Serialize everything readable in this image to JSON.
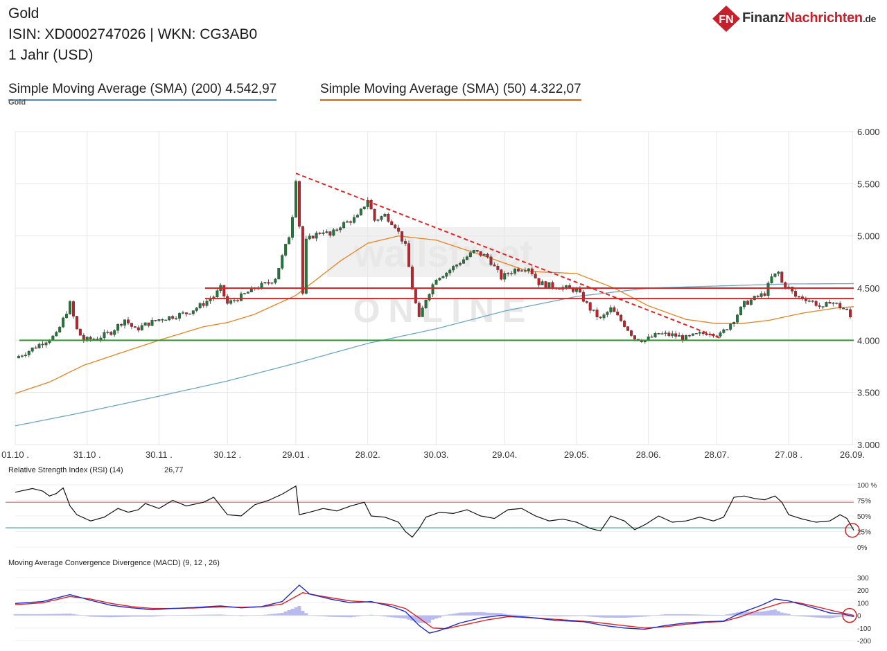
{
  "header": {
    "title": "Gold",
    "isin_line": "ISIN: XD0002747026  | WKN: CG3AB0",
    "period": "1 Jahr (USD)"
  },
  "logo": {
    "badge_text": "FN",
    "brand_part1": "Finanz",
    "brand_part2": "Nachrichten",
    "brand_part3": ".de"
  },
  "legend": {
    "sma200_label": "Simple Moving Average (SMA) (200) 4.542,97",
    "sma50_label": "Simple Moving Average (SMA) (50) 4.322,07",
    "sma200_color": "#6aa6c8",
    "sma50_color": "#e8821e"
  },
  "instrument_label": "Gold",
  "watermark": {
    "line1": "wallstreet",
    "line2": "ONLINE"
  },
  "chart_data": [
    {
      "type": "candlestick",
      "title": "Gold",
      "ylim": [
        3000,
        6000
      ],
      "yticks": [
        "6.000",
        "5.500",
        "5.000",
        "4.500",
        "4.000",
        "3.500",
        "3.000"
      ],
      "ytick_values": [
        6000,
        5500,
        5000,
        4500,
        4000,
        3500,
        3000
      ],
      "xticks": [
        "01.10 .",
        "31.10 .",
        "30.11 .",
        "30.12 .",
        "29.01 .",
        "28.02.",
        "30.03.",
        "29.04.",
        "29.05.",
        "28.06.",
        "28.07.",
        "27.08 .",
        "26.09."
      ],
      "n_days": 245,
      "xtick_days": [
        0,
        21,
        42,
        62,
        82,
        103,
        123,
        143,
        164,
        185,
        205,
        226,
        247
      ],
      "price_keypoints": [
        [
          0,
          3830
        ],
        [
          4,
          3900
        ],
        [
          8,
          3980
        ],
        [
          12,
          4050
        ],
        [
          14,
          4200
        ],
        [
          16,
          4350
        ],
        [
          18,
          4100
        ],
        [
          20,
          4000
        ],
        [
          24,
          4020
        ],
        [
          28,
          4080
        ],
        [
          32,
          4200
        ],
        [
          35,
          4100
        ],
        [
          38,
          4150
        ],
        [
          42,
          4200
        ],
        [
          46,
          4230
        ],
        [
          50,
          4260
        ],
        [
          54,
          4330
        ],
        [
          58,
          4420
        ],
        [
          60,
          4500
        ],
        [
          62,
          4350
        ],
        [
          66,
          4420
        ],
        [
          70,
          4500
        ],
        [
          74,
          4550
        ],
        [
          76,
          4600
        ],
        [
          78,
          4800
        ],
        [
          80,
          5000
        ],
        [
          81,
          5200
        ],
        [
          82,
          5550
        ],
        [
          83,
          5100
        ],
        [
          84,
          4450
        ],
        [
          85,
          4950
        ],
        [
          87,
          5000
        ],
        [
          90,
          5050
        ],
        [
          92,
          5000
        ],
        [
          95,
          5100
        ],
        [
          100,
          5180
        ],
        [
          103,
          5350
        ],
        [
          105,
          5150
        ],
        [
          108,
          5200
        ],
        [
          111,
          5100
        ],
        [
          114,
          4900
        ],
        [
          116,
          4500
        ],
        [
          118,
          4200
        ],
        [
          120,
          4400
        ],
        [
          123,
          4600
        ],
        [
          126,
          4650
        ],
        [
          130,
          4750
        ],
        [
          134,
          4850
        ],
        [
          138,
          4800
        ],
        [
          142,
          4600
        ],
        [
          146,
          4680
        ],
        [
          150,
          4700
        ],
        [
          153,
          4550
        ],
        [
          157,
          4520
        ],
        [
          161,
          4500
        ],
        [
          164,
          4480
        ],
        [
          168,
          4300
        ],
        [
          171,
          4200
        ],
        [
          174,
          4300
        ],
        [
          178,
          4150
        ],
        [
          181,
          4020
        ],
        [
          184,
          4000
        ],
        [
          188,
          4060
        ],
        [
          192,
          4050
        ],
        [
          196,
          4020
        ],
        [
          199,
          4050
        ],
        [
          203,
          4080
        ],
        [
          206,
          4050
        ],
        [
          210,
          4200
        ],
        [
          213,
          4350
        ],
        [
          216,
          4400
        ],
        [
          219,
          4450
        ],
        [
          221,
          4600
        ],
        [
          223,
          4650
        ],
        [
          224,
          4550
        ],
        [
          226,
          4500
        ],
        [
          228,
          4420
        ],
        [
          231,
          4400
        ],
        [
          234,
          4350
        ],
        [
          236,
          4300
        ],
        [
          238,
          4380
        ],
        [
          241,
          4320
        ],
        [
          243,
          4280
        ],
        [
          245,
          4160
        ]
      ],
      "sma200_keypoints": [
        [
          0,
          3180
        ],
        [
          20,
          3310
        ],
        [
          40,
          3450
        ],
        [
          62,
          3610
        ],
        [
          82,
          3780
        ],
        [
          103,
          3970
        ],
        [
          123,
          4110
        ],
        [
          143,
          4280
        ],
        [
          164,
          4420
        ],
        [
          185,
          4500
        ],
        [
          205,
          4520
        ],
        [
          226,
          4540
        ],
        [
          245,
          4543
        ]
      ],
      "sma50_keypoints": [
        [
          0,
          3490
        ],
        [
          10,
          3600
        ],
        [
          20,
          3760
        ],
        [
          30,
          3870
        ],
        [
          42,
          4000
        ],
        [
          55,
          4130
        ],
        [
          62,
          4170
        ],
        [
          70,
          4250
        ],
        [
          82,
          4430
        ],
        [
          95,
          4760
        ],
        [
          103,
          4930
        ],
        [
          112,
          5000
        ],
        [
          123,
          4960
        ],
        [
          135,
          4830
        ],
        [
          150,
          4660
        ],
        [
          164,
          4640
        ],
        [
          175,
          4500
        ],
        [
          185,
          4330
        ],
        [
          196,
          4200
        ],
        [
          205,
          4160
        ],
        [
          212,
          4160
        ],
        [
          220,
          4190
        ],
        [
          230,
          4260
        ],
        [
          240,
          4310
        ],
        [
          245,
          4322
        ]
      ],
      "horizontal_lines": [
        {
          "value": 4500,
          "color": "#e32222"
        },
        {
          "value": 4400,
          "color": "#e32222"
        },
        {
          "value": 4000,
          "color": "#2a9a2a"
        }
      ],
      "trendline": {
        "from": [
          82,
          5600
        ],
        "to": [
          206,
          4020
        ],
        "color": "#e32222",
        "style": "dashed"
      }
    },
    {
      "type": "line",
      "title": "Relative Strength Index (RSI) (14)",
      "value_label": "26,77",
      "ylim": [
        0,
        100
      ],
      "yticks": [
        "100 %",
        "75%",
        "50%",
        "25%",
        "0%"
      ],
      "ytick_values": [
        100,
        75,
        50,
        25,
        0
      ],
      "threshold_lines": [
        {
          "value": 72,
          "color": "#e08a8a"
        },
        {
          "value": 31,
          "color": "#6fb0a0"
        }
      ],
      "keypoints": [
        [
          0,
          88
        ],
        [
          5,
          94
        ],
        [
          8,
          90
        ],
        [
          10,
          82
        ],
        [
          12,
          86
        ],
        [
          14,
          95
        ],
        [
          16,
          66
        ],
        [
          18,
          52
        ],
        [
          22,
          42
        ],
        [
          26,
          48
        ],
        [
          30,
          62
        ],
        [
          33,
          56
        ],
        [
          36,
          60
        ],
        [
          38,
          70
        ],
        [
          42,
          62
        ],
        [
          46,
          75
        ],
        [
          50,
          66
        ],
        [
          55,
          72
        ],
        [
          58,
          80
        ],
        [
          62,
          52
        ],
        [
          66,
          50
        ],
        [
          70,
          68
        ],
        [
          74,
          75
        ],
        [
          78,
          85
        ],
        [
          82,
          98
        ],
        [
          83,
          52
        ],
        [
          86,
          56
        ],
        [
          90,
          62
        ],
        [
          94,
          58
        ],
        [
          98,
          66
        ],
        [
          102,
          72
        ],
        [
          104,
          50
        ],
        [
          108,
          48
        ],
        [
          112,
          40
        ],
        [
          114,
          25
        ],
        [
          116,
          16
        ],
        [
          118,
          30
        ],
        [
          120,
          48
        ],
        [
          124,
          56
        ],
        [
          128,
          54
        ],
        [
          132,
          60
        ],
        [
          136,
          50
        ],
        [
          140,
          46
        ],
        [
          144,
          60
        ],
        [
          148,
          62
        ],
        [
          152,
          50
        ],
        [
          156,
          42
        ],
        [
          160,
          45
        ],
        [
          164,
          40
        ],
        [
          168,
          30
        ],
        [
          171,
          26
        ],
        [
          174,
          50
        ],
        [
          178,
          42
        ],
        [
          181,
          28
        ],
        [
          184,
          36
        ],
        [
          188,
          50
        ],
        [
          192,
          40
        ],
        [
          196,
          42
        ],
        [
          200,
          48
        ],
        [
          204,
          42
        ],
        [
          207,
          48
        ],
        [
          210,
          80
        ],
        [
          213,
          82
        ],
        [
          216,
          78
        ],
        [
          219,
          76
        ],
        [
          222,
          82
        ],
        [
          224,
          72
        ],
        [
          226,
          52
        ],
        [
          230,
          45
        ],
        [
          234,
          40
        ],
        [
          238,
          42
        ],
        [
          241,
          52
        ],
        [
          243,
          46
        ],
        [
          245,
          27
        ]
      ]
    },
    {
      "type": "line",
      "title": "Moving Average Convergence Divergence (MACD) (9, 12 , 26)",
      "ylim": [
        -200,
        300
      ],
      "yticks": [
        "300",
        "200",
        "100",
        "0",
        "-100",
        "-200"
      ],
      "ytick_values": [
        300,
        200,
        100,
        0,
        -100,
        -200
      ],
      "series": [
        {
          "role": "macd",
          "color": "#1f2ccc",
          "keypoints": [
            [
              0,
              95
            ],
            [
              8,
              110
            ],
            [
              16,
              165
            ],
            [
              22,
              120
            ],
            [
              28,
              80
            ],
            [
              34,
              60
            ],
            [
              40,
              45
            ],
            [
              46,
              55
            ],
            [
              52,
              62
            ],
            [
              60,
              75
            ],
            [
              66,
              60
            ],
            [
              72,
              70
            ],
            [
              78,
              110
            ],
            [
              83,
              240
            ],
            [
              86,
              170
            ],
            [
              92,
              130
            ],
            [
              98,
              100
            ],
            [
              104,
              110
            ],
            [
              110,
              70
            ],
            [
              114,
              30
            ],
            [
              118,
              -80
            ],
            [
              121,
              -140
            ],
            [
              124,
              -120
            ],
            [
              130,
              -60
            ],
            [
              136,
              -20
            ],
            [
              142,
              0
            ],
            [
              150,
              -15
            ],
            [
              158,
              -40
            ],
            [
              166,
              -50
            ],
            [
              172,
              -80
            ],
            [
              178,
              -100
            ],
            [
              184,
              -110
            ],
            [
              190,
              -80
            ],
            [
              196,
              -60
            ],
            [
              202,
              -50
            ],
            [
              207,
              -45
            ],
            [
              212,
              20
            ],
            [
              218,
              80
            ],
            [
              222,
              130
            ],
            [
              226,
              115
            ],
            [
              232,
              70
            ],
            [
              238,
              20
            ],
            [
              242,
              10
            ],
            [
              245,
              -10
            ]
          ]
        },
        {
          "role": "signal",
          "color": "#e02020",
          "keypoints": [
            [
              0,
              85
            ],
            [
              8,
              100
            ],
            [
              16,
              150
            ],
            [
              22,
              130
            ],
            [
              28,
              95
            ],
            [
              34,
              70
            ],
            [
              40,
              55
            ],
            [
              46,
              55
            ],
            [
              52,
              58
            ],
            [
              60,
              68
            ],
            [
              66,
              65
            ],
            [
              72,
              68
            ],
            [
              78,
              90
            ],
            [
              84,
              180
            ],
            [
              90,
              150
            ],
            [
              98,
              115
            ],
            [
              104,
              105
            ],
            [
              110,
              85
            ],
            [
              114,
              55
            ],
            [
              118,
              -20
            ],
            [
              122,
              -100
            ],
            [
              126,
              -105
            ],
            [
              132,
              -70
            ],
            [
              138,
              -35
            ],
            [
              144,
              -10
            ],
            [
              152,
              -20
            ],
            [
              160,
              -35
            ],
            [
              168,
              -50
            ],
            [
              176,
              -75
            ],
            [
              184,
              -100
            ],
            [
              190,
              -90
            ],
            [
              196,
              -70
            ],
            [
              202,
              -55
            ],
            [
              207,
              -48
            ],
            [
              212,
              -10
            ],
            [
              218,
              50
            ],
            [
              224,
              100
            ],
            [
              228,
              105
            ],
            [
              234,
              70
            ],
            [
              240,
              30
            ],
            [
              245,
              0
            ]
          ]
        }
      ]
    }
  ]
}
